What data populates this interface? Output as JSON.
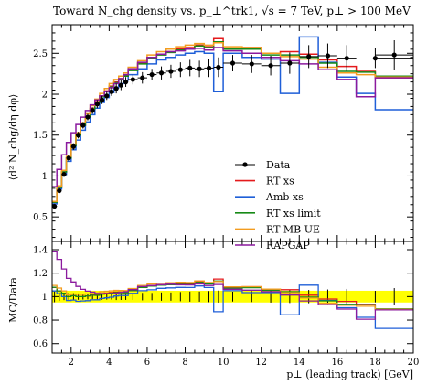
{
  "chart_data": {
    "type": "line",
    "title": "Toward N_chg density vs. p_⊥^trk1, √s = 7 TeV, p⊥ > 100 MeV",
    "main": {
      "ylabel": "⟨d² N_chg/dη dφ⟩",
      "ylim": [
        0.2,
        2.85
      ],
      "yticks": [
        0.5,
        1,
        1.5,
        2,
        2.5
      ],
      "ytick_labels": [
        "0.5",
        "1",
        "1.5",
        "2",
        "2.5"
      ]
    },
    "ratio": {
      "ylabel": "MC/Data",
      "ylim": [
        0.52,
        1.47
      ],
      "yticks": [
        0.6,
        0.8,
        1,
        1.2,
        1.4
      ],
      "ytick_labels": [
        "0.6",
        "0.8",
        "1",
        "1.2",
        "1.4"
      ],
      "band": [
        0.95,
        1.05
      ]
    },
    "xlabel": "p⊥ (leading track) [GeV]",
    "xlim": [
      1,
      20
    ],
    "xticks": [
      2,
      4,
      6,
      8,
      10,
      12,
      14,
      16,
      18,
      20
    ],
    "xtick_labels": [
      "2",
      "4",
      "6",
      "8",
      "10",
      "12",
      "14",
      "16",
      "18",
      "20"
    ],
    "legend_position": "lower-right",
    "bin_edges": [
      1.0,
      1.25,
      1.5,
      1.75,
      2.0,
      2.25,
      2.5,
      2.75,
      3.0,
      3.25,
      3.5,
      3.75,
      4.0,
      4.25,
      4.5,
      4.75,
      5.0,
      5.5,
      6.0,
      6.5,
      7.0,
      7.5,
      8.0,
      8.5,
      9.0,
      9.5,
      10.0,
      11.0,
      12.0,
      13.0,
      14.0,
      15.0,
      16.0,
      17.0,
      18.0,
      20.0
    ],
    "data": {
      "name": "Data",
      "color": "#000000",
      "x": [
        1.125,
        1.375,
        1.625,
        1.875,
        2.125,
        2.375,
        2.625,
        2.875,
        3.125,
        3.375,
        3.625,
        3.875,
        4.125,
        4.375,
        4.625,
        4.875,
        5.25,
        5.75,
        6.25,
        6.75,
        7.25,
        7.75,
        8.25,
        8.75,
        9.25,
        9.75,
        10.5,
        11.5,
        12.5,
        13.5,
        14.5,
        15.5,
        16.5,
        18.0,
        19.0
      ],
      "y": [
        0.63,
        0.82,
        1.02,
        1.22,
        1.36,
        1.5,
        1.62,
        1.72,
        1.8,
        1.88,
        1.93,
        1.98,
        2.03,
        2.07,
        2.11,
        2.15,
        2.18,
        2.2,
        2.24,
        2.26,
        2.28,
        2.3,
        2.32,
        2.31,
        2.32,
        2.33,
        2.38,
        2.37,
        2.35,
        2.38,
        2.46,
        2.47,
        2.44,
        2.44,
        2.48
      ],
      "yerr": [
        0.03,
        0.03,
        0.03,
        0.04,
        0.04,
        0.04,
        0.04,
        0.04,
        0.04,
        0.05,
        0.05,
        0.05,
        0.05,
        0.06,
        0.06,
        0.06,
        0.06,
        0.07,
        0.07,
        0.08,
        0.08,
        0.09,
        0.1,
        0.1,
        0.11,
        0.12,
        0.1,
        0.11,
        0.12,
        0.13,
        0.14,
        0.15,
        0.16,
        0.12,
        0.18
      ]
    },
    "series": [
      {
        "name": "RT xs",
        "color": "#e41a1c",
        "values": [
          0.68,
          0.86,
          1.05,
          1.22,
          1.37,
          1.5,
          1.62,
          1.73,
          1.83,
          1.91,
          1.98,
          2.04,
          2.1,
          2.15,
          2.19,
          2.23,
          2.3,
          2.38,
          2.45,
          2.49,
          2.52,
          2.55,
          2.57,
          2.6,
          2.58,
          2.68,
          2.56,
          2.57,
          2.5,
          2.52,
          2.49,
          2.42,
          2.34,
          2.28,
          2.2
        ]
      },
      {
        "name": "Amb xs",
        "color": "#1f5fd8",
        "values": [
          0.66,
          0.84,
          1.02,
          1.18,
          1.32,
          1.44,
          1.56,
          1.66,
          1.75,
          1.83,
          1.9,
          1.96,
          2.02,
          2.08,
          2.13,
          2.17,
          2.24,
          2.31,
          2.37,
          2.42,
          2.45,
          2.48,
          2.5,
          2.52,
          2.5,
          2.03,
          2.5,
          2.45,
          2.43,
          2.01,
          2.7,
          2.39,
          2.21,
          2.01,
          1.81
        ]
      },
      {
        "name": "RT xs limit",
        "color": "#178a17",
        "values": [
          0.68,
          0.86,
          1.05,
          1.22,
          1.37,
          1.5,
          1.62,
          1.73,
          1.82,
          1.9,
          1.97,
          2.03,
          2.09,
          2.14,
          2.18,
          2.22,
          2.29,
          2.37,
          2.44,
          2.48,
          2.51,
          2.54,
          2.56,
          2.59,
          2.57,
          2.64,
          2.55,
          2.55,
          2.48,
          2.48,
          2.45,
          2.38,
          2.28,
          2.27,
          2.22
        ]
      },
      {
        "name": "RT MB UE",
        "color": "#f39c1f",
        "values": [
          0.69,
          0.88,
          1.07,
          1.24,
          1.39,
          1.53,
          1.65,
          1.76,
          1.86,
          1.94,
          2.01,
          2.07,
          2.13,
          2.18,
          2.22,
          2.26,
          2.33,
          2.41,
          2.48,
          2.52,
          2.55,
          2.58,
          2.6,
          2.62,
          2.6,
          2.63,
          2.58,
          2.57,
          2.5,
          2.46,
          2.43,
          2.33,
          2.26,
          2.24,
          2.21
        ]
      },
      {
        "name": "RAPGAP",
        "color": "#8b1a9e",
        "values": [
          0.87,
          1.08,
          1.26,
          1.41,
          1.53,
          1.63,
          1.72,
          1.8,
          1.87,
          1.93,
          1.98,
          2.03,
          2.08,
          2.13,
          2.19,
          2.24,
          2.31,
          2.39,
          2.45,
          2.49,
          2.52,
          2.53,
          2.55,
          2.56,
          2.54,
          2.57,
          2.53,
          2.5,
          2.45,
          2.41,
          2.37,
          2.3,
          2.18,
          1.97,
          2.2
        ]
      }
    ]
  }
}
